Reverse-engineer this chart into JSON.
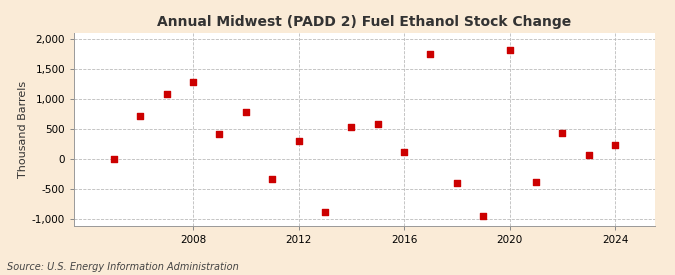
{
  "title": "Annual Midwest (PADD 2) Fuel Ethanol Stock Change",
  "ylabel": "Thousand Barrels",
  "source": "Source: U.S. Energy Information Administration",
  "background_color": "#faebd7",
  "plot_background_color": "#ffffff",
  "marker_color": "#cc0000",
  "grid_color": "#bbbbbb",
  "years": [
    2005,
    2006,
    2007,
    2008,
    2009,
    2010,
    2011,
    2012,
    2013,
    2014,
    2015,
    2016,
    2017,
    2018,
    2019,
    2020,
    2021,
    2022,
    2023,
    2024
  ],
  "values": [
    0,
    720,
    1080,
    1290,
    420,
    780,
    -320,
    300,
    -870,
    540,
    580,
    130,
    1750,
    -400,
    -950,
    1810,
    -380,
    430,
    75,
    230
  ],
  "xlim": [
    2003.5,
    2025.5
  ],
  "ylim": [
    -1100,
    2100
  ],
  "yticks": [
    -1000,
    -500,
    0,
    500,
    1000,
    1500,
    2000
  ],
  "xticks": [
    2008,
    2012,
    2016,
    2020,
    2024
  ],
  "title_fontsize": 10,
  "label_fontsize": 8,
  "tick_fontsize": 7.5,
  "source_fontsize": 7
}
